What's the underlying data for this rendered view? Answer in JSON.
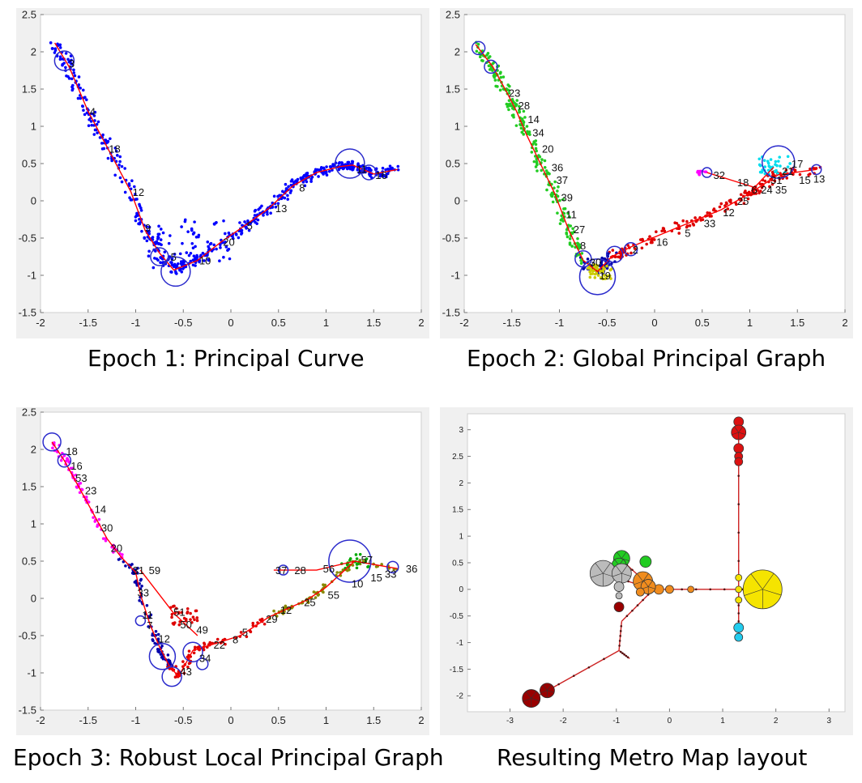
{
  "captions": {
    "epoch1": "Epoch 1: Principal Curve",
    "epoch2": "Epoch 2: Global Principal Graph",
    "epoch3": "Epoch 3: Robust Local Principal Graph",
    "metro": "Resulting Metro Map layout"
  },
  "chart_data": [
    {
      "type": "scatter",
      "title": "",
      "xlim": [
        -2,
        2
      ],
      "ylim": [
        -1.5,
        2.5
      ],
      "xticks": [
        "-2",
        "-1.5",
        "-1",
        "-0.5",
        "0",
        "0.5",
        "1",
        "1.5",
        "2"
      ],
      "yticks": [
        "2.5",
        "2",
        "1.5",
        "1",
        "0.5",
        "0",
        "-0.5",
        "-1",
        "-1.5"
      ],
      "colors": {
        "points": "#0000ff",
        "edges": "#ff0000",
        "nodes": "#2b2bcc"
      },
      "path": [
        [
          -1.85,
          2.12
        ],
        [
          -1.7,
          1.8
        ],
        [
          -1.5,
          1.2
        ],
        [
          -1.3,
          0.72
        ],
        [
          -1.05,
          0.12
        ],
        [
          -0.9,
          -0.4
        ],
        [
          -0.75,
          -0.7
        ],
        [
          -0.6,
          -0.93
        ],
        [
          -0.35,
          -0.8
        ],
        [
          -0.1,
          -0.55
        ],
        [
          0.15,
          -0.33
        ],
        [
          0.4,
          -0.1
        ],
        [
          0.65,
          0.2
        ],
        [
          0.9,
          0.38
        ],
        [
          1.15,
          0.46
        ],
        [
          1.28,
          0.48
        ],
        [
          1.5,
          0.36
        ],
        [
          1.75,
          0.42
        ]
      ],
      "node_labels": [
        {
          "x": -1.72,
          "y": 1.85,
          "t": "3"
        },
        {
          "x": -1.5,
          "y": 1.2,
          "t": "4"
        },
        {
          "x": -1.3,
          "y": 0.7,
          "t": "18"
        },
        {
          "x": -1.05,
          "y": 0.12,
          "t": "12"
        },
        {
          "x": -0.92,
          "y": -0.36,
          "t": "9"
        },
        {
          "x": -0.65,
          "y": -0.75,
          "t": "5"
        },
        {
          "x": -0.35,
          "y": -0.8,
          "t": "10"
        },
        {
          "x": -0.1,
          "y": -0.55,
          "t": "20"
        },
        {
          "x": 0.15,
          "y": -0.33,
          "t": "5"
        },
        {
          "x": 0.45,
          "y": -0.1,
          "t": "13"
        },
        {
          "x": 0.7,
          "y": 0.18,
          "t": "8"
        },
        {
          "x": 1.3,
          "y": 0.43,
          "t": "11"
        },
        {
          "x": 1.5,
          "y": 0.35,
          "t": "16"
        }
      ],
      "circles": [
        {
          "x": -1.75,
          "y": 1.88,
          "r": 12
        },
        {
          "x": -0.75,
          "y": -0.75,
          "r": 11
        },
        {
          "x": -0.58,
          "y": -0.95,
          "r": 18
        },
        {
          "x": 1.25,
          "y": 0.5,
          "r": 18
        },
        {
          "x": 1.45,
          "y": 0.38,
          "r": 9
        }
      ]
    },
    {
      "type": "scatter",
      "title": "",
      "xlim": [
        -2,
        2
      ],
      "ylim": [
        -1.5,
        2.5
      ],
      "xticks": [
        "-2",
        "-1.5",
        "-1",
        "-0.5",
        "0",
        "0.5",
        "1",
        "1.5",
        "2"
      ],
      "yticks": [
        "2.5",
        "2",
        "1.5",
        "1",
        "0.5",
        "0",
        "-0.5",
        "-1",
        "-1.5"
      ],
      "colors": {
        "branch1": "#22cc22",
        "branch2": "#dd0000",
        "branch3": "#0000aa",
        "branch4": "#cccc00",
        "branch5": "#00ddee",
        "branch6": "#ff00ff",
        "edges": "#ff0000"
      },
      "path": [
        [
          -1.88,
          2.1
        ],
        [
          -1.7,
          1.8
        ],
        [
          -1.55,
          1.45
        ],
        [
          -1.45,
          1.2
        ],
        [
          -1.35,
          0.9
        ],
        [
          -1.2,
          0.5
        ],
        [
          -1.05,
          0.1
        ],
        [
          -0.9,
          -0.4
        ],
        [
          -0.75,
          -0.8
        ],
        [
          -0.6,
          -0.95
        ],
        [
          -0.45,
          -0.75
        ],
        [
          -0.25,
          -0.62
        ],
        [
          0.2,
          -0.38
        ],
        [
          0.7,
          -0.12
        ],
        [
          1.0,
          0.1
        ],
        [
          1.3,
          0.35
        ],
        [
          1.7,
          0.42
        ]
      ],
      "branch_path": [
        [
          0.55,
          0.38
        ],
        [
          0.8,
          0.28
        ],
        [
          1.05,
          0.18
        ],
        [
          1.25,
          0.45
        ]
      ],
      "node_labels": [
        {
          "x": -1.55,
          "y": 1.45,
          "t": "23"
        },
        {
          "x": -1.45,
          "y": 1.28,
          "t": "28"
        },
        {
          "x": -1.35,
          "y": 1.1,
          "t": "14"
        },
        {
          "x": -1.3,
          "y": 0.92,
          "t": "34"
        },
        {
          "x": -1.2,
          "y": 0.7,
          "t": "20"
        },
        {
          "x": -1.1,
          "y": 0.45,
          "t": "36"
        },
        {
          "x": -1.05,
          "y": 0.28,
          "t": "37"
        },
        {
          "x": -1.0,
          "y": 0.05,
          "t": "39"
        },
        {
          "x": -0.95,
          "y": -0.18,
          "t": "11"
        },
        {
          "x": -0.87,
          "y": -0.38,
          "t": "27"
        },
        {
          "x": -0.8,
          "y": -0.6,
          "t": "8"
        },
        {
          "x": -0.7,
          "y": -0.82,
          "t": "30"
        },
        {
          "x": -0.6,
          "y": -1.0,
          "t": "19"
        },
        {
          "x": -0.25,
          "y": -0.65,
          "t": "2"
        },
        {
          "x": 0.0,
          "y": -0.55,
          "t": "16"
        },
        {
          "x": 0.3,
          "y": -0.43,
          "t": "5"
        },
        {
          "x": 0.5,
          "y": -0.3,
          "t": "33"
        },
        {
          "x": 0.7,
          "y": -0.15,
          "t": "12"
        },
        {
          "x": 0.85,
          "y": 0.0,
          "t": "25"
        },
        {
          "x": 0.6,
          "y": 0.35,
          "t": "32"
        },
        {
          "x": 0.85,
          "y": 0.25,
          "t": "18"
        },
        {
          "x": 1.0,
          "y": 0.15,
          "t": "6"
        },
        {
          "x": 1.1,
          "y": 0.15,
          "t": "24"
        },
        {
          "x": 1.25,
          "y": 0.15,
          "t": "35"
        },
        {
          "x": 1.2,
          "y": 0.28,
          "t": "31"
        },
        {
          "x": 1.32,
          "y": 0.4,
          "t": "21"
        },
        {
          "x": 1.42,
          "y": 0.5,
          "t": "17"
        },
        {
          "x": 1.5,
          "y": 0.28,
          "t": "15"
        },
        {
          "x": 1.65,
          "y": 0.3,
          "t": "13"
        }
      ],
      "circles": [
        {
          "x": -1.85,
          "y": 2.05,
          "r": 8
        },
        {
          "x": -1.72,
          "y": 1.8,
          "r": 8
        },
        {
          "x": -0.75,
          "y": -0.78,
          "r": 10
        },
        {
          "x": -0.6,
          "y": -1.02,
          "r": 22
        },
        {
          "x": -0.42,
          "y": -0.72,
          "r": 10
        },
        {
          "x": -0.25,
          "y": -0.65,
          "r": 8
        },
        {
          "x": 1.3,
          "y": 0.52,
          "r": 20
        },
        {
          "x": 0.55,
          "y": 0.38,
          "r": 6
        },
        {
          "x": 1.7,
          "y": 0.42,
          "r": 6
        }
      ]
    },
    {
      "type": "scatter",
      "title": "",
      "xlim": [
        -2,
        2
      ],
      "ylim": [
        -1.5,
        2.5
      ],
      "xticks": [
        "-2",
        "-1.5",
        "-1",
        "-0.5",
        "0",
        "0.5",
        "1",
        "1.5",
        "2"
      ],
      "yticks": [
        "2.5",
        "2",
        "1.5",
        "1",
        "0.5",
        "0",
        "-0.5",
        "-1",
        "-1.5"
      ],
      "colors": {
        "edges": "#ff0000",
        "nodes": "#2b2bcc",
        "branch_a": "#dd0000",
        "branch_b": "#ff00ff",
        "branch_c": "#00aa00",
        "branch_d": "#0000aa",
        "branch_e": "#888800"
      },
      "path": [
        [
          -1.88,
          2.1
        ],
        [
          -1.75,
          1.85
        ],
        [
          -1.6,
          1.5
        ],
        [
          -1.45,
          1.15
        ],
        [
          -1.3,
          0.8
        ],
        [
          -1.15,
          0.55
        ],
        [
          -1.0,
          0.35
        ],
        [
          -0.95,
          0.05
        ],
        [
          -0.85,
          -0.35
        ],
        [
          -0.75,
          -0.65
        ],
        [
          -0.65,
          -0.9
        ],
        [
          -0.55,
          -1.05
        ],
        [
          -0.4,
          -0.7
        ],
        [
          -0.2,
          -0.62
        ],
        [
          0.1,
          -0.5
        ],
        [
          0.4,
          -0.25
        ],
        [
          0.8,
          -0.02
        ],
        [
          1.0,
          0.15
        ],
        [
          1.3,
          0.5
        ],
        [
          1.75,
          0.4
        ]
      ],
      "branch_path": [
        [
          0.45,
          0.38
        ],
        [
          0.9,
          0.38
        ],
        [
          1.3,
          0.5
        ]
      ],
      "node_labels": [
        {
          "x": -1.75,
          "y": 1.98,
          "t": "18"
        },
        {
          "x": -1.7,
          "y": 1.78,
          "t": "16"
        },
        {
          "x": -1.65,
          "y": 1.62,
          "t": "53"
        },
        {
          "x": -1.55,
          "y": 1.45,
          "t": "23"
        },
        {
          "x": -1.45,
          "y": 1.2,
          "t": "14"
        },
        {
          "x": -1.38,
          "y": 0.95,
          "t": "30"
        },
        {
          "x": -1.28,
          "y": 0.68,
          "t": "20"
        },
        {
          "x": -1.05,
          "y": 0.38,
          "t": "31"
        },
        {
          "x": -0.88,
          "y": 0.38,
          "t": "59"
        },
        {
          "x": -1.0,
          "y": 0.08,
          "t": "33"
        },
        {
          "x": -0.95,
          "y": -0.22,
          "t": "11"
        },
        {
          "x": -0.9,
          "y": -0.36,
          "t": "7"
        },
        {
          "x": -0.78,
          "y": -0.54,
          "t": "12"
        },
        {
          "x": -0.55,
          "y": -0.98,
          "t": "43"
        },
        {
          "x": -0.62,
          "y": -0.18,
          "t": "51"
        },
        {
          "x": -0.55,
          "y": -0.35,
          "t": "50"
        },
        {
          "x": -0.38,
          "y": -0.42,
          "t": "49"
        },
        {
          "x": -0.35,
          "y": -0.8,
          "t": "34"
        },
        {
          "x": -0.2,
          "y": -0.62,
          "t": "22"
        },
        {
          "x": 0.0,
          "y": -0.55,
          "t": "8"
        },
        {
          "x": 0.1,
          "y": -0.45,
          "t": "5"
        },
        {
          "x": 0.35,
          "y": -0.27,
          "t": "29"
        },
        {
          "x": 0.5,
          "y": -0.15,
          "t": "12"
        },
        {
          "x": 0.75,
          "y": -0.05,
          "t": "25"
        },
        {
          "x": 1.0,
          "y": 0.05,
          "t": "55"
        },
        {
          "x": 1.25,
          "y": 0.2,
          "t": "10"
        },
        {
          "x": 1.45,
          "y": 0.28,
          "t": "15"
        },
        {
          "x": 1.6,
          "y": 0.33,
          "t": "33"
        },
        {
          "x": 1.82,
          "y": 0.4,
          "t": "36"
        },
        {
          "x": 0.45,
          "y": 0.38,
          "t": "37"
        },
        {
          "x": 0.65,
          "y": 0.38,
          "t": "28"
        },
        {
          "x": 0.95,
          "y": 0.4,
          "t": "56"
        },
        {
          "x": 1.35,
          "y": 0.52,
          "t": "57"
        }
      ],
      "circles": [
        {
          "x": -1.88,
          "y": 2.1,
          "r": 11
        },
        {
          "x": -1.75,
          "y": 1.85,
          "r": 8
        },
        {
          "x": -0.95,
          "y": -0.3,
          "r": 6
        },
        {
          "x": -0.72,
          "y": -0.78,
          "r": 16
        },
        {
          "x": -0.62,
          "y": -1.05,
          "r": 12
        },
        {
          "x": -0.4,
          "y": -0.72,
          "r": 12
        },
        {
          "x": -0.3,
          "y": -0.88,
          "r": 7
        },
        {
          "x": 0.55,
          "y": 0.38,
          "r": 6
        },
        {
          "x": 1.25,
          "y": 0.5,
          "r": 26
        },
        {
          "x": 1.7,
          "y": 0.42,
          "r": 7
        }
      ]
    },
    {
      "type": "scatter",
      "title": "",
      "xlim": [
        -3.8,
        3.3
      ],
      "ylim": [
        -2.3,
        3.3
      ],
      "xticks": [
        "-3",
        "-2",
        "-1",
        "0",
        "1",
        "2",
        "3"
      ],
      "yticks": [
        "3",
        "2.5",
        "2",
        "1.5",
        "1",
        "0.5",
        "0",
        "-0.5",
        "-1",
        "-1.5",
        "-2"
      ],
      "colors": {
        "red": "#dd1111",
        "green": "#22cc22",
        "gray": "#bbbbbb",
        "orange": "#f08c1e",
        "yellow": "#f5e400",
        "cyan": "#22ccee",
        "darkred": "#990000",
        "edge": "#cc2222"
      },
      "edges": [
        [
          [
            1.3,
            3.2
          ],
          [
            1.3,
            0.0
          ]
        ],
        [
          [
            1.3,
            0.0
          ],
          [
            1.3,
            -0.9
          ]
        ],
        [
          [
            1.3,
            0.0
          ],
          [
            -0.3,
            0.0
          ]
        ],
        [
          [
            -0.3,
            0.0
          ],
          [
            -0.9,
            0.55
          ]
        ],
        [
          [
            -0.3,
            0.0
          ],
          [
            -1.25,
            0.3
          ]
        ],
        [
          [
            -0.3,
            0.0
          ],
          [
            -0.9,
            -0.6
          ]
        ],
        [
          [
            -0.9,
            -0.6
          ],
          [
            -0.95,
            -1.15
          ]
        ],
        [
          [
            -0.95,
            -1.15
          ],
          [
            -2.65,
            -2.1
          ]
        ],
        [
          [
            -0.95,
            -1.15
          ],
          [
            -0.75,
            -1.3
          ]
        ],
        [
          [
            1.3,
            0.0
          ],
          [
            1.75,
            0.0
          ]
        ]
      ],
      "metro_nodes": [
        {
          "x": 1.3,
          "y": 3.15,
          "r": 6,
          "c": "red"
        },
        {
          "x": 1.3,
          "y": 2.95,
          "r": 9,
          "c": "red"
        },
        {
          "x": 1.3,
          "y": 2.65,
          "r": 6,
          "c": "red"
        },
        {
          "x": 1.3,
          "y": 2.5,
          "r": 5,
          "c": "red"
        },
        {
          "x": 1.3,
          "y": 2.4,
          "r": 5,
          "c": "red"
        },
        {
          "x": 1.3,
          "y": 0.0,
          "r": 4,
          "c": "yellow"
        },
        {
          "x": 1.3,
          "y": 0.22,
          "r": 4,
          "c": "yellow"
        },
        {
          "x": 1.3,
          "y": -0.2,
          "r": 4,
          "c": "yellow"
        },
        {
          "x": 1.75,
          "y": 0.0,
          "r": 24,
          "c": "yellow"
        },
        {
          "x": 1.3,
          "y": -0.72,
          "r": 6,
          "c": "cyan"
        },
        {
          "x": 1.3,
          "y": -0.9,
          "r": 5,
          "c": "cyan"
        },
        {
          "x": 0.4,
          "y": 0.0,
          "r": 4,
          "c": "orange"
        },
        {
          "x": 0.0,
          "y": 0.0,
          "r": 5,
          "c": "orange"
        },
        {
          "x": -0.2,
          "y": 0.0,
          "r": 6,
          "c": "orange"
        },
        {
          "x": -0.5,
          "y": 0.15,
          "r": 12,
          "c": "orange"
        },
        {
          "x": -0.4,
          "y": 0.05,
          "r": 9,
          "c": "orange"
        },
        {
          "x": -0.55,
          "y": -0.05,
          "r": 5,
          "c": "orange"
        },
        {
          "x": -0.9,
          "y": 0.58,
          "r": 10,
          "c": "green"
        },
        {
          "x": -0.95,
          "y": 0.45,
          "r": 9,
          "c": "green"
        },
        {
          "x": -0.45,
          "y": 0.52,
          "r": 7,
          "c": "green"
        },
        {
          "x": -1.25,
          "y": 0.3,
          "r": 16,
          "c": "gray"
        },
        {
          "x": -0.9,
          "y": 0.3,
          "r": 12,
          "c": "gray"
        },
        {
          "x": -0.95,
          "y": 0.05,
          "r": 6,
          "c": "gray"
        },
        {
          "x": -0.95,
          "y": -0.12,
          "r": 4,
          "c": "gray"
        },
        {
          "x": -0.95,
          "y": -0.33,
          "r": 6,
          "c": "darkred"
        },
        {
          "x": -2.3,
          "y": -1.9,
          "r": 9,
          "c": "darkred"
        },
        {
          "x": -2.6,
          "y": -2.05,
          "r": 11,
          "c": "darkred"
        }
      ]
    }
  ]
}
